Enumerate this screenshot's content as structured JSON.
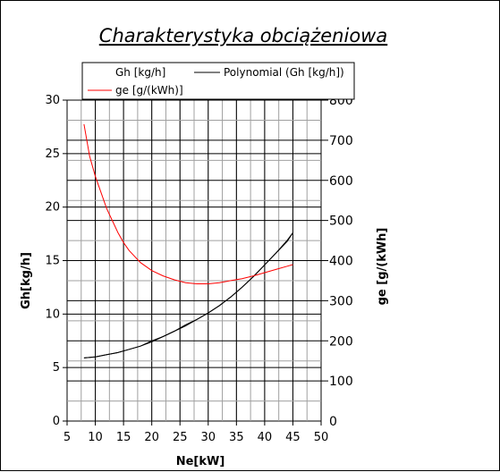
{
  "chart_data": {
    "type": "line",
    "title": "Charakterystyka obciążeniowa",
    "xlabel": "Ne[kW]",
    "ylabel_left": "Gh[kg/h]",
    "ylabel_right": "ge [g/(kWh]",
    "xlim": [
      5,
      50
    ],
    "ylim_left": [
      0,
      30
    ],
    "ylim_right": [
      0,
      800
    ],
    "x_ticks": [
      "5",
      "10",
      "15",
      "20",
      "25",
      "30",
      "35",
      "40",
      "45",
      "50"
    ],
    "y_ticks_left": [
      "0",
      "5",
      "10",
      "15",
      "20",
      "25",
      "30"
    ],
    "y_ticks_right": [
      "0",
      "100",
      "200",
      "300",
      "400",
      "500",
      "600",
      "700",
      "800"
    ],
    "grid": true,
    "legend_position": "top",
    "series": [
      {
        "name": "Gh [kg/h]",
        "axis": "left",
        "color": "#000000",
        "x": [
          8,
          10,
          12,
          14,
          16,
          18,
          20,
          22,
          24,
          26,
          28,
          30,
          32,
          34,
          36,
          38,
          40,
          42,
          44,
          45
        ],
        "y": [
          5.9,
          6.0,
          6.2,
          6.4,
          6.7,
          7.0,
          7.5,
          7.9,
          8.4,
          9.0,
          9.5,
          10.1,
          10.8,
          11.6,
          12.5,
          13.5,
          14.6,
          15.7,
          16.8,
          17.6
        ]
      },
      {
        "name": "Polynomial (Gh [kg/h])",
        "axis": "left",
        "color": "#000000",
        "x": [
          8,
          10,
          12,
          14,
          16,
          18,
          20,
          22,
          24,
          26,
          28,
          30,
          32,
          34,
          36,
          38,
          40,
          42,
          44,
          45
        ],
        "y": [
          5.9,
          6.0,
          6.2,
          6.4,
          6.7,
          7.0,
          7.4,
          7.9,
          8.4,
          8.9,
          9.5,
          10.1,
          10.8,
          11.6,
          12.5,
          13.5,
          14.6,
          15.7,
          16.9,
          17.6
        ]
      },
      {
        "name": "ge [g/(kWh)]",
        "axis": "right",
        "color": "#ff0000",
        "x": [
          8,
          9,
          10,
          11,
          12,
          13,
          14,
          15,
          16,
          18,
          20,
          22,
          24,
          26,
          28,
          30,
          32,
          34,
          36,
          38,
          40,
          42,
          44,
          45
        ],
        "y": [
          740,
          660,
          610,
          570,
          530,
          500,
          470,
          445,
          425,
          395,
          375,
          362,
          352,
          345,
          342,
          342,
          345,
          350,
          355,
          362,
          370,
          378,
          386,
          390
        ]
      }
    ]
  }
}
